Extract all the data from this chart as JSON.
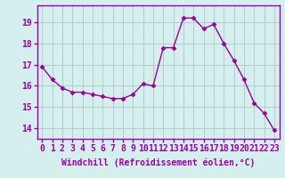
{
  "x": [
    0,
    1,
    2,
    3,
    4,
    5,
    6,
    7,
    8,
    9,
    10,
    11,
    12,
    13,
    14,
    15,
    16,
    17,
    18,
    19,
    20,
    21,
    22,
    23
  ],
  "y": [
    16.9,
    16.3,
    15.9,
    15.7,
    15.7,
    15.6,
    15.5,
    15.4,
    15.4,
    15.6,
    16.1,
    16.0,
    17.8,
    17.8,
    19.2,
    19.2,
    18.7,
    18.9,
    18.0,
    17.2,
    16.3,
    15.2,
    14.7,
    13.9
  ],
  "line_color": "#990099",
  "marker": "D",
  "marker_size": 2.5,
  "bg_color": "#d5efef",
  "grid_color": "#b0cccc",
  "xlabel": "Windchill (Refroidissement éolien,°C)",
  "xlabel_fontsize": 7,
  "tick_fontsize": 7,
  "ylim": [
    13.5,
    19.8
  ],
  "xlim": [
    -0.5,
    23.5
  ],
  "yticks": [
    14,
    15,
    16,
    17,
    18,
    19
  ],
  "xticks": [
    0,
    1,
    2,
    3,
    4,
    5,
    6,
    7,
    8,
    9,
    10,
    11,
    12,
    13,
    14,
    15,
    16,
    17,
    18,
    19,
    20,
    21,
    22,
    23
  ],
  "spine_color": "#9900aa",
  "label_color": "#9900aa"
}
